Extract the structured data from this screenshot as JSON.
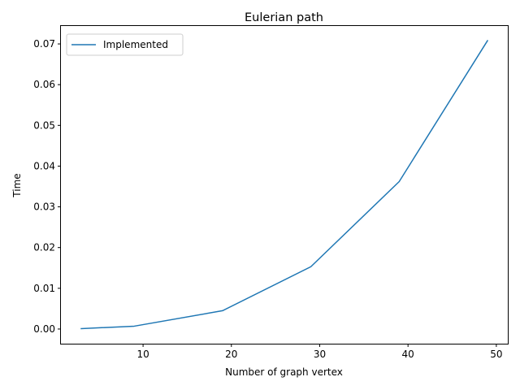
{
  "chart_data": {
    "type": "line",
    "title": "Eulerian path",
    "xlabel": "Number of graph vertex",
    "ylabel": "Time",
    "xlim": [
      0.7,
      51.3
    ],
    "ylim": [
      -0.0036,
      0.0744
    ],
    "xticks": [
      10,
      20,
      30,
      40,
      50
    ],
    "xtick_labels": [
      "10",
      "20",
      "30",
      "40",
      "50"
    ],
    "yticks": [
      0.0,
      0.01,
      0.02,
      0.03,
      0.04,
      0.05,
      0.06,
      0.07
    ],
    "ytick_labels": [
      "0.00",
      "0.01",
      "0.02",
      "0.03",
      "0.04",
      "0.05",
      "0.06",
      "0.07"
    ],
    "grid": false,
    "legend_position": "top-left",
    "x": [
      3,
      9,
      19,
      29,
      39,
      49
    ],
    "series": [
      {
        "name": "Implemented",
        "color": "#1f77b4",
        "values": [
          0.0001,
          0.0007,
          0.0045,
          0.0153,
          0.0362,
          0.0708
        ]
      }
    ]
  }
}
